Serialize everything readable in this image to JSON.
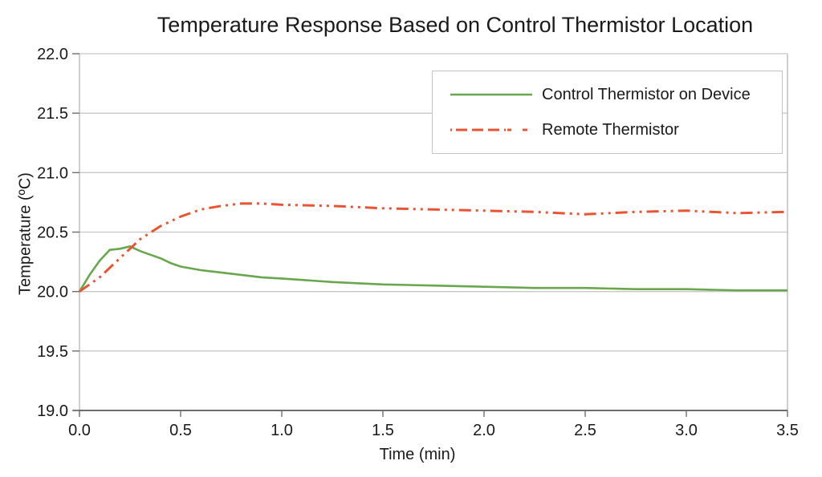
{
  "title": "Temperature Response Based on Control Thermistor Location",
  "colors": {
    "background": "#ffffff",
    "gridline": "#c8c8c8",
    "axis_dark": "#404040",
    "axis_light": "#b5b5b5",
    "tick": "#6e6e6e",
    "legend_border": "#c4c4c4",
    "text": "#1a1a1a"
  },
  "chart_data": {
    "type": "line",
    "title": "Temperature Response Based on Control Thermistor Location",
    "xlabel": "Time (min)",
    "ylabel": "Temperature (ºC)",
    "xlim": [
      0,
      3.5
    ],
    "ylim": [
      19.0,
      22.0
    ],
    "xticks": [
      0.0,
      0.5,
      1.0,
      1.5,
      2.0,
      2.5,
      3.0,
      3.5
    ],
    "yticks": [
      19.0,
      19.5,
      20.0,
      20.5,
      21.0,
      21.5,
      22.0
    ],
    "xtick_labels": [
      "0.0",
      "0.5",
      "1.0",
      "1.5",
      "2.0",
      "2.5",
      "3.0",
      "3.5"
    ],
    "ytick_labels": [
      "19.0",
      "19.5",
      "20.0",
      "20.5",
      "21.0",
      "21.5",
      "22.0"
    ],
    "grid": "horizontal-only",
    "legend_position": "top-right",
    "series": [
      {
        "name": "Control Thermistor on Device",
        "color": "#69a74e",
        "style": "solid",
        "x": [
          0,
          0.05,
          0.1,
          0.15,
          0.2,
          0.25,
          0.3,
          0.35,
          0.4,
          0.45,
          0.5,
          0.6,
          0.7,
          0.8,
          0.9,
          1.0,
          1.25,
          1.5,
          1.75,
          2.0,
          2.25,
          2.5,
          2.75,
          3.0,
          3.25,
          3.5
        ],
        "y": [
          20.0,
          20.14,
          20.26,
          20.35,
          20.36,
          20.38,
          20.34,
          20.31,
          20.28,
          20.24,
          20.21,
          20.18,
          20.16,
          20.14,
          20.12,
          20.11,
          20.08,
          20.06,
          20.05,
          20.04,
          20.03,
          20.03,
          20.02,
          20.02,
          20.01,
          20.01
        ]
      },
      {
        "name": "Remote Thermistor",
        "color": "#e95432",
        "style": "dash-dot-dot",
        "x": [
          0,
          0.1,
          0.2,
          0.3,
          0.4,
          0.5,
          0.6,
          0.7,
          0.8,
          0.9,
          1.0,
          1.25,
          1.5,
          1.75,
          2.0,
          2.25,
          2.5,
          2.75,
          3.0,
          3.25,
          3.5
        ],
        "y": [
          20.0,
          20.12,
          20.28,
          20.44,
          20.55,
          20.63,
          20.69,
          20.72,
          20.74,
          20.74,
          20.73,
          20.72,
          20.7,
          20.69,
          20.68,
          20.67,
          20.65,
          20.67,
          20.68,
          20.66,
          20.67
        ]
      }
    ]
  }
}
